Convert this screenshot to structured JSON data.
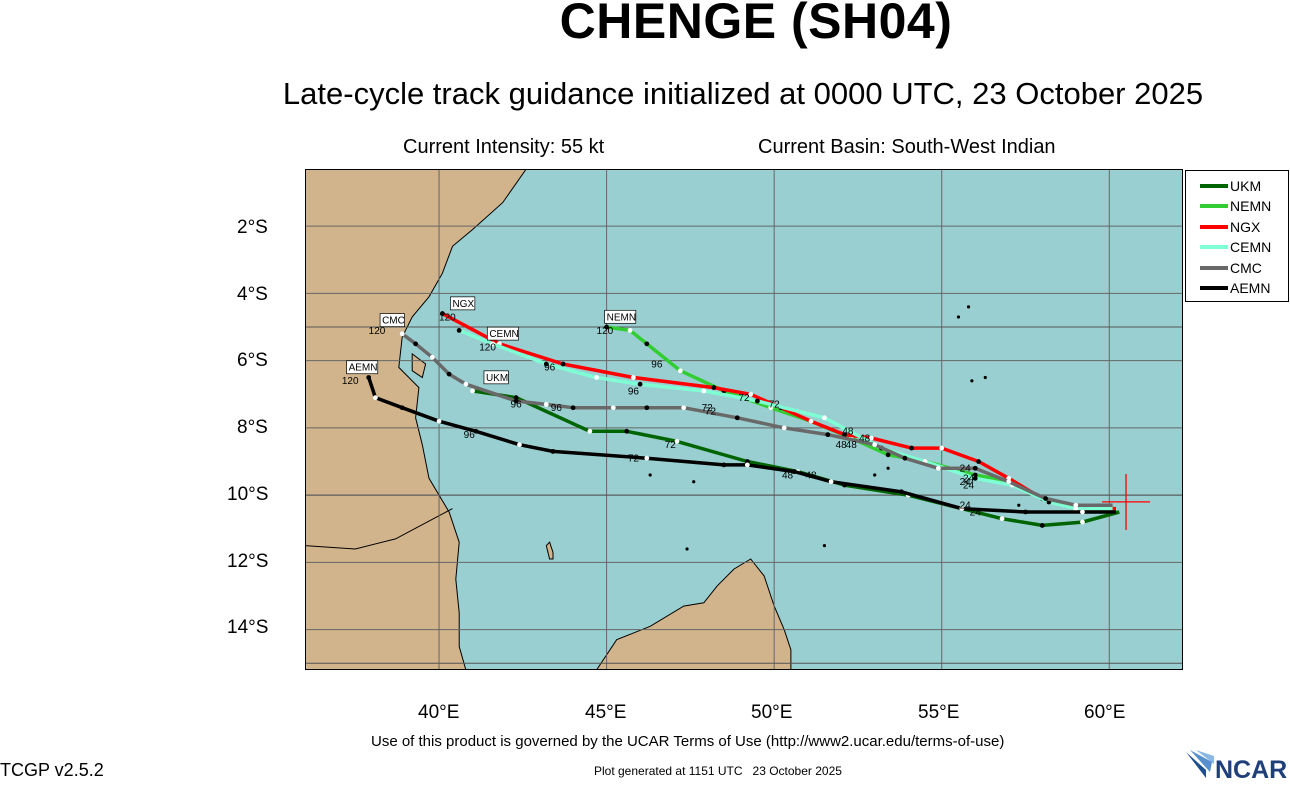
{
  "header": {
    "title": "CHENGE (SH04)",
    "subtitle": "Late-cycle track guidance initialized at 0000 UTC, 23 October 2025",
    "intensity": "Current Intensity: 55 kt",
    "basin": "Current Basin: South-West Indian"
  },
  "axes": {
    "lat_labels": [
      "2°S",
      "4°S",
      "6°S",
      "8°S",
      "10°S",
      "12°S",
      "14°S"
    ],
    "lon_labels": [
      "40°E",
      "45°E",
      "50°E",
      "55°E",
      "60°E"
    ],
    "lon_range": [
      36,
      62.2
    ],
    "lat_range": [
      -15.2,
      -0.3
    ]
  },
  "colors": {
    "ocean": "#99cfd0",
    "land": "#d2b48c",
    "grid": "#666666"
  },
  "legend": [
    {
      "name": "UKM",
      "color": "#006400"
    },
    {
      "name": "NEMN",
      "color": "#32cd32"
    },
    {
      "name": "NGX",
      "color": "#ff0000"
    },
    {
      "name": "CEMN",
      "color": "#7fffd4"
    },
    {
      "name": "CMC",
      "color": "#696969"
    },
    {
      "name": "AEMN",
      "color": "#000000"
    }
  ],
  "current_position": {
    "lon": 60.5,
    "lat": -10.2
  },
  "tracks": [
    {
      "name": "UKM",
      "color": "#006400",
      "points": [
        [
          60.3,
          -10.5
        ],
        [
          59.2,
          -10.8
        ],
        [
          58,
          -10.9
        ],
        [
          56.8,
          -10.7
        ],
        [
          55.6,
          -10.4
        ],
        [
          54,
          -10
        ],
        [
          52.1,
          -9.7
        ],
        [
          50.7,
          -9.3
        ],
        [
          49.2,
          -9
        ],
        [
          47.1,
          -8.4
        ],
        [
          45.6,
          -8.1
        ],
        [
          44.5,
          -8.1
        ],
        [
          42.3,
          -7.1
        ],
        [
          41,
          -6.9
        ]
      ],
      "tau_labels": [
        {
          "text": "24",
          "lon": 56,
          "lat": -10.6
        },
        {
          "text": "48",
          "lon": 51.1,
          "lat": -9.5
        },
        {
          "text": "72",
          "lon": 46.9,
          "lat": -8.6
        },
        {
          "text": "96",
          "lon": 42.3,
          "lat": -7.4
        }
      ]
    },
    {
      "name": "NEMN",
      "color": "#32cd32",
      "points": [
        [
          60.2,
          -10.5
        ],
        [
          59.2,
          -10.4
        ],
        [
          58.2,
          -10.2
        ],
        [
          57.1,
          -9.6
        ],
        [
          56,
          -9.4
        ],
        [
          54.5,
          -9
        ],
        [
          53.4,
          -8.8
        ],
        [
          52.3,
          -8.3
        ],
        [
          51.1,
          -7.8
        ],
        [
          49.9,
          -7.4
        ],
        [
          48.5,
          -6.9
        ],
        [
          47.2,
          -6.3
        ],
        [
          46.2,
          -5.5
        ],
        [
          45.7,
          -5.1
        ],
        [
          45,
          -5
        ]
      ],
      "tau_labels": [
        {
          "text": "24",
          "lon": 55.8,
          "lat": -9.6
        },
        {
          "text": "48",
          "lon": 52.3,
          "lat": -8.6
        },
        {
          "text": "72",
          "lon": 50,
          "lat": -7.4
        },
        {
          "text": "96",
          "lon": 46.5,
          "lat": -6.2
        }
      ]
    },
    {
      "name": "NGX",
      "color": "#ff0000",
      "points": [
        [
          60.2,
          -10.4
        ],
        [
          59,
          -10.4
        ],
        [
          58,
          -10.1
        ],
        [
          57,
          -9.5
        ],
        [
          56.1,
          -9
        ],
        [
          55,
          -8.6
        ],
        [
          54.1,
          -8.6
        ],
        [
          52.9,
          -8.3
        ],
        [
          52.1,
          -8.2
        ],
        [
          51.1,
          -7.8
        ],
        [
          50.2,
          -7.4
        ],
        [
          49.3,
          -7
        ],
        [
          48.2,
          -6.8
        ],
        [
          45.8,
          -6.5
        ],
        [
          43.7,
          -6.1
        ],
        [
          41.8,
          -5.5
        ],
        [
          40.1,
          -4.6
        ]
      ],
      "tau_labels": [
        {
          "text": "24",
          "lon": 55.7,
          "lat": -9.3
        },
        {
          "text": "48",
          "lon": 52.7,
          "lat": -8.4
        },
        {
          "text": "72",
          "lon": 49.1,
          "lat": -7.2
        },
        {
          "text": "96",
          "lon": 43.3,
          "lat": -6.3
        }
      ]
    },
    {
      "name": "CEMN",
      "color": "#7fffd4",
      "points": [
        [
          60.1,
          -10.4
        ],
        [
          59,
          -10.4
        ],
        [
          58.2,
          -10.2
        ],
        [
          57.1,
          -9.7
        ],
        [
          56,
          -9.5
        ],
        [
          54.5,
          -9
        ],
        [
          53.2,
          -8.6
        ],
        [
          51.5,
          -7.7
        ],
        [
          49.5,
          -7.2
        ],
        [
          47.9,
          -6.9
        ],
        [
          46,
          -6.7
        ],
        [
          44.7,
          -6.5
        ],
        [
          43.2,
          -6.1
        ],
        [
          41.6,
          -5.5
        ],
        [
          40.6,
          -5.1
        ]
      ],
      "tau_labels": [
        {
          "text": "24",
          "lon": 55.8,
          "lat": -9.8
        },
        {
          "text": "48",
          "lon": 52,
          "lat": -8.6
        },
        {
          "text": "72",
          "lon": 48,
          "lat": -7.5
        },
        {
          "text": "96",
          "lon": 45.8,
          "lat": -7
        }
      ]
    },
    {
      "name": "CMC",
      "color": "#696969",
      "points": [
        [
          60.1,
          -10.3
        ],
        [
          59,
          -10.3
        ],
        [
          58.1,
          -10.1
        ],
        [
          57,
          -9.6
        ],
        [
          56,
          -9.2
        ],
        [
          54.9,
          -9.2
        ],
        [
          53.9,
          -8.9
        ],
        [
          53,
          -8.5
        ],
        [
          51.6,
          -8.2
        ],
        [
          50.3,
          -8
        ],
        [
          48.9,
          -7.7
        ],
        [
          47.3,
          -7.4
        ],
        [
          46.2,
          -7.4
        ],
        [
          45.2,
          -7.4
        ],
        [
          44,
          -7.4
        ],
        [
          43.2,
          -7.3
        ],
        [
          42.3,
          -7.2
        ],
        [
          40.8,
          -6.7
        ],
        [
          40.3,
          -6.4
        ],
        [
          39.8,
          -5.9
        ],
        [
          39.3,
          -5.5
        ],
        [
          38.9,
          -5.2
        ]
      ],
      "tau_labels": [
        {
          "text": "24",
          "lon": 55.7,
          "lat": -9.7
        },
        {
          "text": "48",
          "lon": 52.2,
          "lat": -8.2
        },
        {
          "text": "72",
          "lon": 48.1,
          "lat": -7.6
        },
        {
          "text": "96",
          "lon": 43.5,
          "lat": -7.5
        }
      ]
    },
    {
      "name": "AEMN",
      "color": "#000000",
      "points": [
        [
          60.2,
          -10.5
        ],
        [
          59.2,
          -10.5
        ],
        [
          57.5,
          -10.5
        ],
        [
          55.6,
          -10.4
        ],
        [
          53.8,
          -9.9
        ],
        [
          51.7,
          -9.6
        ],
        [
          50.6,
          -9.3
        ],
        [
          49.2,
          -9.1
        ],
        [
          48.5,
          -9.1
        ],
        [
          46.2,
          -8.9
        ],
        [
          43.4,
          -8.7
        ],
        [
          42.4,
          -8.5
        ],
        [
          41.1,
          -8.1
        ],
        [
          40,
          -7.8
        ],
        [
          38.9,
          -7.4
        ],
        [
          38.1,
          -7.1
        ],
        [
          37.9,
          -6.5
        ]
      ],
      "tau_labels": [
        {
          "text": "24",
          "lon": 55.7,
          "lat": -10.4
        },
        {
          "text": "48",
          "lon": 50.4,
          "lat": -9.5
        },
        {
          "text": "72",
          "lon": 45.8,
          "lat": -9
        },
        {
          "text": "96",
          "lon": 40.9,
          "lat": -8.3
        }
      ]
    }
  ],
  "end_labels": [
    {
      "text": "NGX",
      "lon": 40.4,
      "lat": -4.4
    },
    {
      "text": "CMC",
      "lon": 38.3,
      "lat": -4.9
    },
    {
      "text": "CEMN",
      "lon": 41.5,
      "lat": -5.3
    },
    {
      "text": "UKM",
      "lon": 41.4,
      "lat": -6.6
    },
    {
      "text": "NEMN",
      "lon": 45,
      "lat": -4.8
    },
    {
      "text": "AEMN",
      "lon": 37.3,
      "lat": -6.3
    }
  ],
  "end_hours": [
    {
      "text": "120",
      "lon": 40,
      "lat": -4.8
    },
    {
      "text": "120",
      "lon": 37.9,
      "lat": -5.2
    },
    {
      "text": "120",
      "lon": 41.2,
      "lat": -5.7
    },
    {
      "text": "120",
      "lon": 44.7,
      "lat": -5.2
    },
    {
      "text": "120",
      "lon": 37.1,
      "lat": -6.7
    }
  ],
  "footer": {
    "version": "TCGP v2.5.2",
    "terms": "Use of this product is governed by the UCAR Terms of Use (http://www2.ucar.edu/terms-of-use)",
    "generated": "Plot generated at 1151 UTC   23 October 2025",
    "logo_text": "NCAR"
  }
}
